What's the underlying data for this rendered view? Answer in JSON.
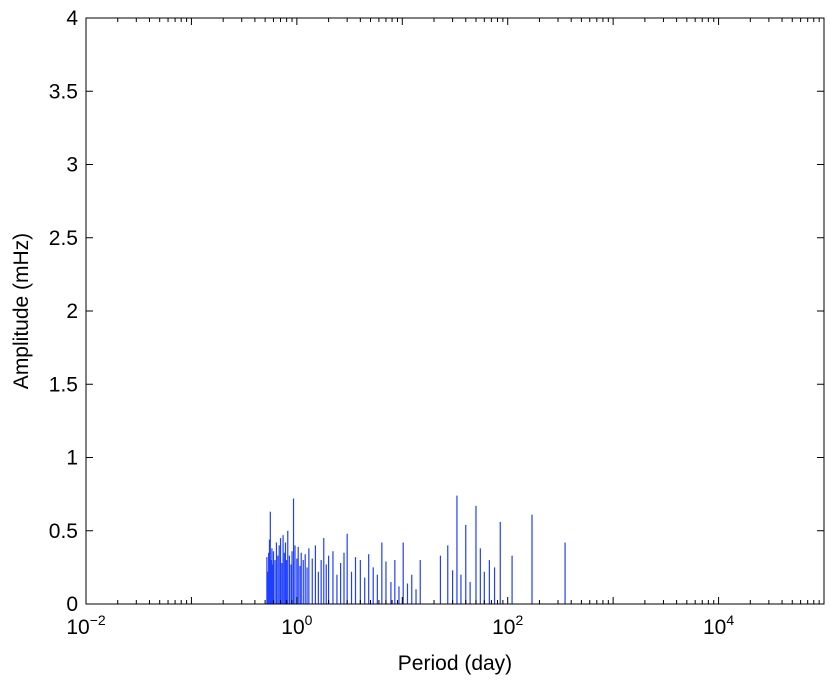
{
  "chart_data": {
    "type": "bar",
    "xlabel": "Period (day)",
    "ylabel": "Amplitude (mHz)",
    "xscale": "log",
    "xlim": [
      0.01,
      100000
    ],
    "ylim": [
      0,
      4
    ],
    "x_ticks": [
      {
        "base": "10",
        "exp": "−2",
        "value": 0.01
      },
      {
        "base": "10",
        "exp": "0",
        "value": 1
      },
      {
        "base": "10",
        "exp": "2",
        "value": 100
      },
      {
        "base": "10",
        "exp": "4",
        "value": 10000
      }
    ],
    "y_ticks": [
      "0",
      "0.5",
      "1",
      "1.5",
      "2",
      "2.5",
      "3",
      "3.5",
      "4"
    ],
    "grid": false,
    "bar_color": "#1f3fff",
    "series": [
      {
        "x": [
          0.52,
          0.53,
          0.54,
          0.55,
          0.56,
          0.57,
          0.58,
          0.59,
          0.6,
          0.62,
          0.64,
          0.66,
          0.68,
          0.7,
          0.72,
          0.74,
          0.76,
          0.78,
          0.8,
          0.82,
          0.85,
          0.88,
          0.9,
          0.93,
          0.96,
          1.0,
          1.03,
          1.07,
          1.1,
          1.15,
          1.2,
          1.25,
          1.3,
          1.4,
          1.5,
          1.6,
          1.7,
          1.8,
          1.9,
          2.0,
          2.2,
          2.4,
          2.6,
          2.8,
          3.0,
          3.3,
          3.6,
          4.0,
          4.4,
          4.8,
          5.3,
          5.8,
          6.4,
          7.0,
          7.8,
          8.5,
          9.3,
          10.2,
          11.2,
          12.3,
          13.5,
          14.8,
          23,
          27,
          30,
          33,
          36,
          40,
          44,
          50,
          55,
          60,
          67,
          75,
          85,
          110,
          170,
          350
        ],
        "values": [
          0.32,
          0.22,
          0.35,
          0.44,
          0.63,
          0.3,
          0.38,
          0.27,
          0.36,
          0.3,
          0.42,
          0.33,
          0.4,
          0.45,
          0.28,
          0.47,
          0.35,
          0.42,
          0.3,
          0.5,
          0.33,
          0.27,
          0.36,
          0.72,
          0.4,
          0.31,
          0.39,
          0.26,
          0.35,
          0.3,
          0.34,
          0.25,
          0.38,
          0.31,
          0.4,
          0.22,
          0.3,
          0.45,
          0.27,
          0.33,
          0.36,
          0.2,
          0.28,
          0.35,
          0.48,
          0.22,
          0.32,
          0.3,
          0.18,
          0.34,
          0.25,
          0.2,
          0.42,
          0.29,
          0.15,
          0.3,
          0.12,
          0.42,
          0.14,
          0.2,
          0.1,
          0.3,
          0.33,
          0.4,
          0.23,
          0.74,
          0.2,
          0.54,
          0.15,
          0.67,
          0.38,
          0.22,
          0.3,
          0.25,
          0.56,
          0.33,
          0.61,
          0.42
        ]
      }
    ]
  }
}
